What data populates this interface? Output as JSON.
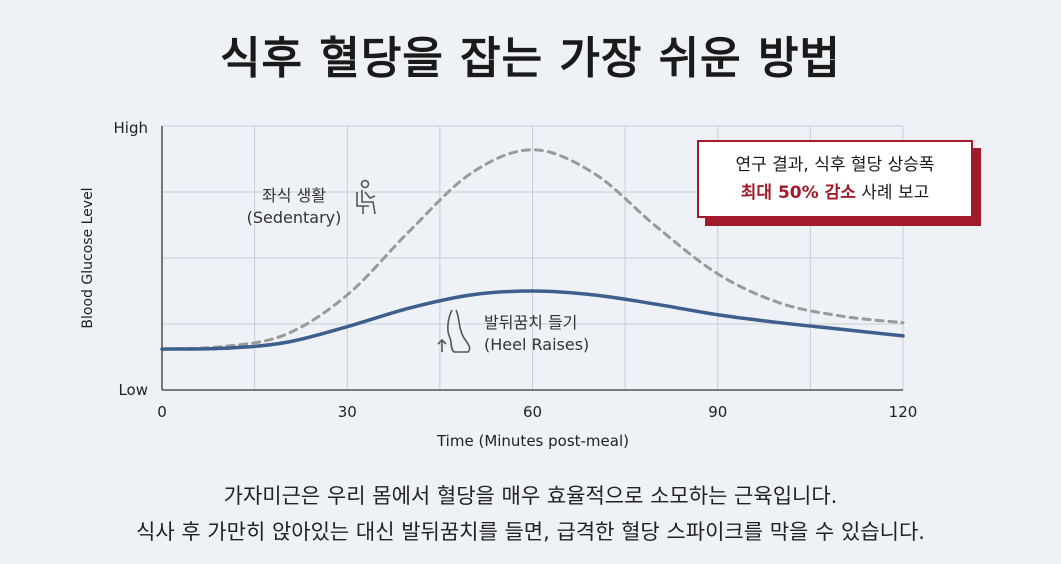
{
  "title": "식후 혈당을 잡는 가장 쉬운 방법",
  "callout": {
    "line1": "연구 결과, 식후 혈당 상승폭",
    "highlight": "최대 50% 감소",
    "line2_rest": " 사례 보고"
  },
  "labels": {
    "sedentary_ko": "좌식 생활",
    "sedentary_en": "(Sedentary)",
    "heel_ko": "발뒤꿈치 들기",
    "heel_en": "(Heel Raises)"
  },
  "footer": {
    "line1": "가자미근은 우리 몸에서 혈당을 매우 효율적으로 소모하는 근육입니다.",
    "line2": "식사 후 가만히 앉아있는 대신 발뒤꿈치를 들면, 급격한 혈당 스파이크를 막을 수 있습니다."
  },
  "chart_data": {
    "type": "line",
    "xlabel": "Time (Minutes post-meal)",
    "ylabel": "Blood Glucose Level",
    "xlim": [
      0,
      120
    ],
    "ylim": [
      0,
      1
    ],
    "x_ticks": [
      0,
      30,
      60,
      90,
      120
    ],
    "y_tick_labels": [
      "Low",
      "High"
    ],
    "grid": true,
    "series": [
      {
        "name": "좌식 생활 (Sedentary)",
        "color": "#9a9a9a",
        "style": "dashed",
        "x": [
          0,
          10,
          20,
          30,
          40,
          50,
          60,
          70,
          80,
          90,
          100,
          110,
          120
        ],
        "y": [
          0.155,
          0.165,
          0.21,
          0.36,
          0.6,
          0.82,
          0.91,
          0.82,
          0.62,
          0.44,
          0.33,
          0.28,
          0.255
        ]
      },
      {
        "name": "발뒤꿈치 들기 (Heel Raises)",
        "color": "#3e5f8e",
        "style": "solid",
        "x": [
          0,
          10,
          20,
          30,
          40,
          50,
          60,
          70,
          80,
          90,
          100,
          110,
          120
        ],
        "y": [
          0.155,
          0.158,
          0.18,
          0.24,
          0.31,
          0.36,
          0.375,
          0.36,
          0.325,
          0.285,
          0.255,
          0.23,
          0.205
        ]
      }
    ]
  }
}
